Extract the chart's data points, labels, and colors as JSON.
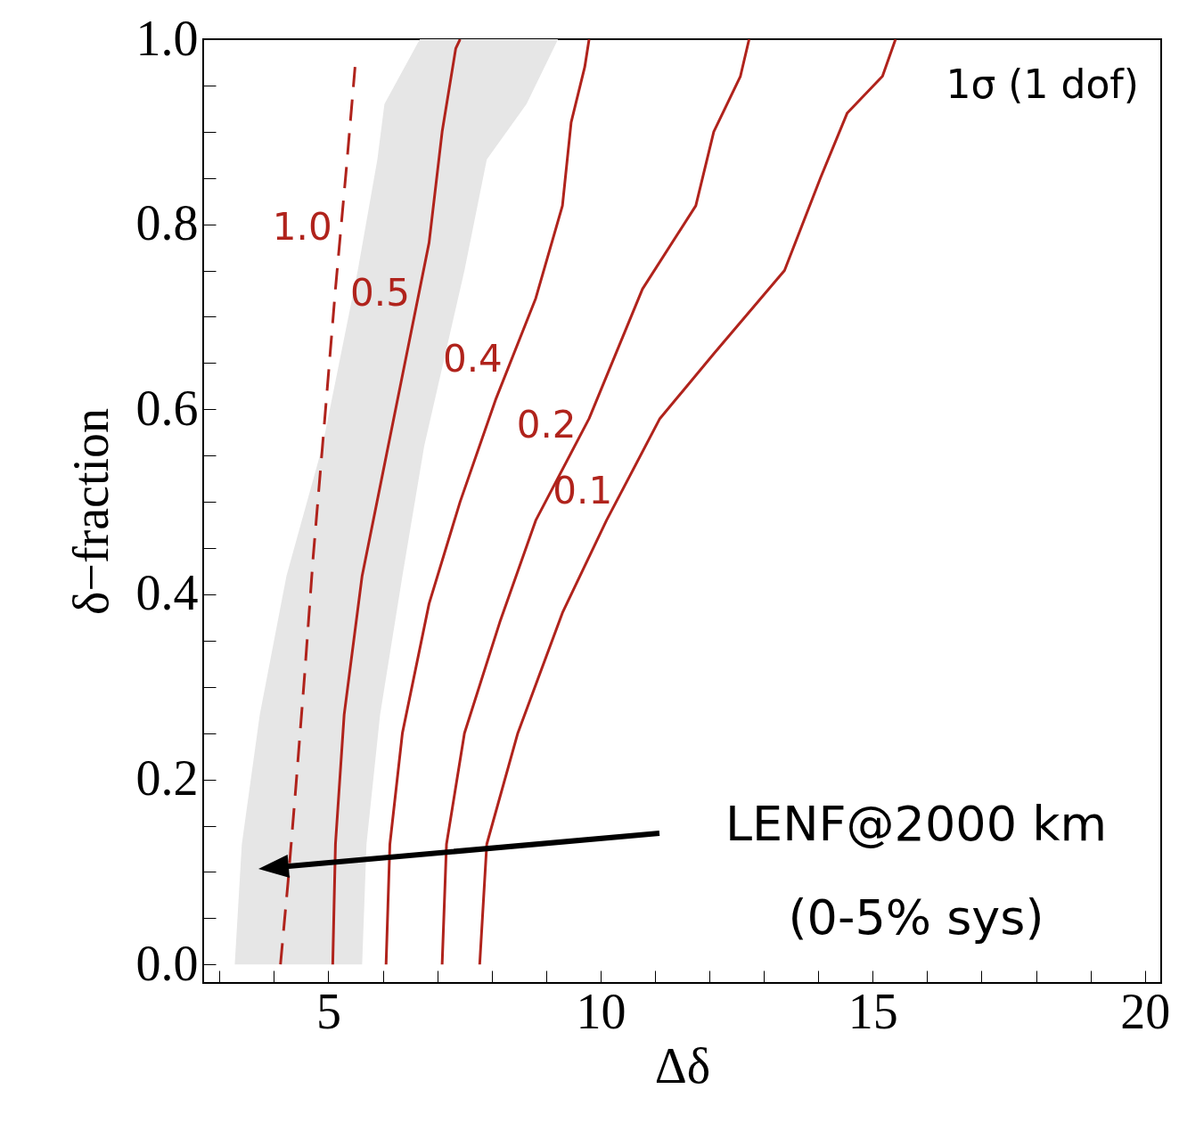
{
  "chart_data": {
    "type": "line",
    "xlabel": "Δδ",
    "ylabel": "δ−fraction",
    "xlim": [
      2.7,
      20.3
    ],
    "ylim": [
      -0.02,
      1.0
    ],
    "xticks": [
      {
        "value": 3,
        "label": null
      },
      {
        "value": 4,
        "label": null
      },
      5,
      {
        "value": 6,
        "label": null
      },
      {
        "value": 7,
        "label": null
      },
      {
        "value": 8,
        "label": null
      },
      {
        "value": 9,
        "label": null
      },
      10,
      {
        "value": 11,
        "label": null
      },
      {
        "value": 12,
        "label": null
      },
      {
        "value": 13,
        "label": null
      },
      {
        "value": 14,
        "label": null
      },
      15,
      {
        "value": 16,
        "label": null
      },
      {
        "value": 17,
        "label": null
      },
      {
        "value": 18,
        "label": null
      },
      {
        "value": 19,
        "label": null
      },
      20
    ],
    "yticks": [
      {
        "value": 0,
        "label": "0.0"
      },
      {
        "value": 0.05,
        "label": null
      },
      {
        "value": 0.1,
        "label": null
      },
      {
        "value": 0.15,
        "label": null
      },
      0.2,
      {
        "value": 0.25,
        "label": null
      },
      {
        "value": 0.3,
        "label": null
      },
      {
        "value": 0.35,
        "label": null
      },
      0.4,
      {
        "value": 0.45,
        "label": null
      },
      {
        "value": 0.5,
        "label": null
      },
      {
        "value": 0.55,
        "label": null
      },
      0.6,
      {
        "value": 0.65,
        "label": null
      },
      {
        "value": 0.7,
        "label": null
      },
      {
        "value": 0.75,
        "label": null
      },
      0.8,
      {
        "value": 0.85,
        "label": null
      },
      {
        "value": 0.9,
        "label": null
      },
      {
        "value": 0.95,
        "label": null
      },
      {
        "value": 1,
        "label": "1.0"
      }
    ],
    "grid": false,
    "line_style": "solid",
    "series": [
      {
        "type": "area",
        "color": "#e6e6e6",
        "x": [
          3.28,
          3.41,
          3.74,
          4.23,
          4.89,
          5.54,
          5.9,
          6.03,
          6.68,
          9.22,
          8.64,
          7.91,
          7.5,
          6.76,
          6.36,
          5.95,
          5.7,
          5.62
        ],
        "values": [
          0,
          0.13,
          0.27,
          0.42,
          0.56,
          0.75,
          0.87,
          0.93,
          1.0,
          1.0,
          0.93,
          0.87,
          0.75,
          0.56,
          0.42,
          0.27,
          0.13,
          0
        ]
      },
      {
        "name": "1.0",
        "color": "#b0231c",
        "line_style": "dashed",
        "x": [
          4.12,
          4.26,
          4.4,
          4.56,
          4.72,
          4.92,
          5.13,
          5.33,
          5.49
        ],
        "values": [
          0,
          0.09,
          0.19,
          0.31,
          0.44,
          0.58,
          0.73,
          0.86,
          0.97
        ]
      },
      {
        "name": "0.5",
        "color": "#b0231c",
        "x": [
          5.08,
          5.13,
          5.29,
          5.62,
          6.03,
          6.44,
          6.85,
          7.09,
          7.34,
          7.42
        ],
        "values": [
          0,
          0.13,
          0.27,
          0.42,
          0.54,
          0.66,
          0.78,
          0.9,
          0.99,
          1.0
        ]
      },
      {
        "name": "0.4",
        "color": "#b0231c",
        "x": [
          6.06,
          6.13,
          6.36,
          6.85,
          7.42,
          8.07,
          8.81,
          9.3,
          9.46,
          9.71,
          9.79
        ],
        "values": [
          0,
          0.13,
          0.25,
          0.39,
          0.5,
          0.61,
          0.72,
          0.82,
          0.91,
          0.97,
          1.0
        ]
      },
      {
        "name": "0.2",
        "color": "#b0231c",
        "x": [
          7.09,
          7.17,
          7.5,
          8.15,
          8.81,
          9.79,
          10.77,
          11.75,
          12.08,
          12.57,
          12.73
        ],
        "values": [
          0,
          0.13,
          0.25,
          0.37,
          0.48,
          0.59,
          0.73,
          0.82,
          0.9,
          0.96,
          1.0
        ]
      },
      {
        "name": "0.1",
        "color": "#b0231c",
        "x": [
          7.78,
          7.91,
          8.48,
          9.3,
          10.11,
          11.09,
          12.08,
          13.38,
          14.04,
          14.53,
          15.18,
          15.42
        ],
        "values": [
          0,
          0.13,
          0.25,
          0.38,
          0.48,
          0.59,
          0.66,
          0.75,
          0.85,
          0.92,
          0.96,
          1.0
        ]
      }
    ],
    "annotations": [
      "1σ (1 dof)",
      "LENF@2000 km\n(0-5% sys)"
    ]
  }
}
